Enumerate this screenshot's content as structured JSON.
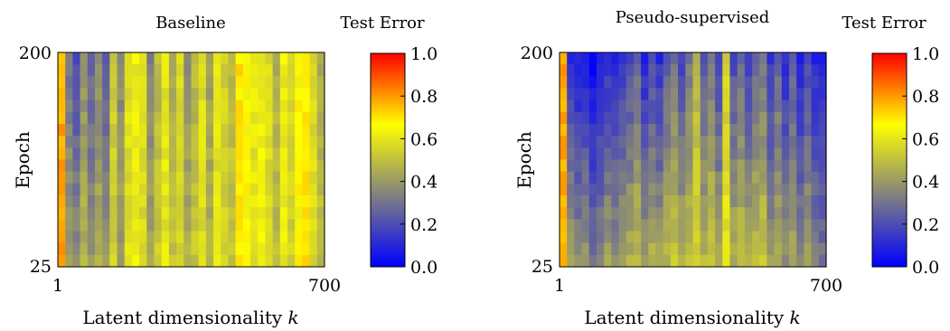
{
  "chart_data": [
    {
      "type": "heatmap",
      "title": "Baseline",
      "xlabel": "Latent dimensionality k",
      "ylabel": "Epoch",
      "x_ticks": [
        "1",
        "700"
      ],
      "y_ticks": [
        "25",
        "200"
      ],
      "xlim": [
        1,
        700
      ],
      "ylim": [
        25,
        200
      ],
      "colorbar": {
        "title": "Test Error",
        "ticks": [
          "0.0",
          "0.2",
          "0.4",
          "0.6",
          "0.8",
          "1.0"
        ],
        "range": [
          0,
          1
        ],
        "colors": [
          "#0000ff",
          "#808080",
          "#ffff00",
          "#ff0000"
        ]
      },
      "grid": false,
      "columns": 36,
      "rows": 18,
      "column_profile": [
        0.78,
        0.42,
        0.36,
        0.46,
        0.38,
        0.44,
        0.4,
        0.55,
        0.42,
        0.58,
        0.62,
        0.57,
        0.45,
        0.53,
        0.6,
        0.5,
        0.56,
        0.46,
        0.52,
        0.58,
        0.48,
        0.6,
        0.55,
        0.52,
        0.7,
        0.66,
        0.6,
        0.63,
        0.57,
        0.5,
        0.62,
        0.55,
        0.66,
        0.7,
        0.57,
        0.5
      ],
      "top_bottom_shift": [
        0.0,
        -0.12,
        -0.15,
        -0.08,
        -0.12,
        -0.08,
        -0.18,
        -0.02,
        -0.06,
        0.0,
        0.0,
        0.0,
        -0.12,
        -0.05,
        0.0,
        -0.06,
        0.0,
        -0.1,
        -0.05,
        0.0,
        -0.08,
        0.0,
        0.0,
        -0.03,
        0.0,
        0.0,
        0.0,
        0.0,
        0.0,
        -0.05,
        0.0,
        0.0,
        0.0,
        0.0,
        0.0,
        -0.05
      ]
    },
    {
      "type": "heatmap",
      "title": "Pseudo-supervised",
      "xlabel": "Latent dimensionality k",
      "ylabel": "Epoch",
      "x_ticks": [
        "1",
        "700"
      ],
      "y_ticks": [
        "25",
        "200"
      ],
      "xlim": [
        1,
        700
      ],
      "ylim": [
        25,
        200
      ],
      "colorbar": {
        "title": "Test Error",
        "ticks": [
          "0.0",
          "0.2",
          "0.4",
          "0.6",
          "0.8",
          "1.0"
        ],
        "range": [
          0,
          1
        ],
        "colors": [
          "#0000ff",
          "#808080",
          "#ffff00",
          "#ff0000"
        ]
      },
      "grid": false,
      "columns": 36,
      "rows": 18,
      "column_profile": [
        0.78,
        0.42,
        0.36,
        0.4,
        0.3,
        0.36,
        0.42,
        0.38,
        0.44,
        0.45,
        0.5,
        0.4,
        0.46,
        0.42,
        0.48,
        0.52,
        0.46,
        0.5,
        0.56,
        0.48,
        0.52,
        0.44,
        0.6,
        0.46,
        0.5,
        0.44,
        0.48,
        0.52,
        0.4,
        0.46,
        0.38,
        0.44,
        0.36,
        0.42,
        0.34,
        0.3
      ],
      "top_bottom_shift": [
        0.0,
        -0.3,
        -0.28,
        -0.32,
        -0.28,
        -0.3,
        -0.3,
        -0.28,
        -0.3,
        -0.26,
        -0.24,
        -0.3,
        -0.28,
        -0.3,
        -0.24,
        -0.22,
        -0.28,
        -0.2,
        -0.1,
        -0.26,
        -0.2,
        -0.26,
        -0.05,
        -0.26,
        -0.22,
        -0.28,
        -0.2,
        -0.22,
        -0.26,
        -0.2,
        -0.26,
        -0.2,
        -0.26,
        -0.22,
        -0.24,
        -0.22
      ]
    }
  ]
}
